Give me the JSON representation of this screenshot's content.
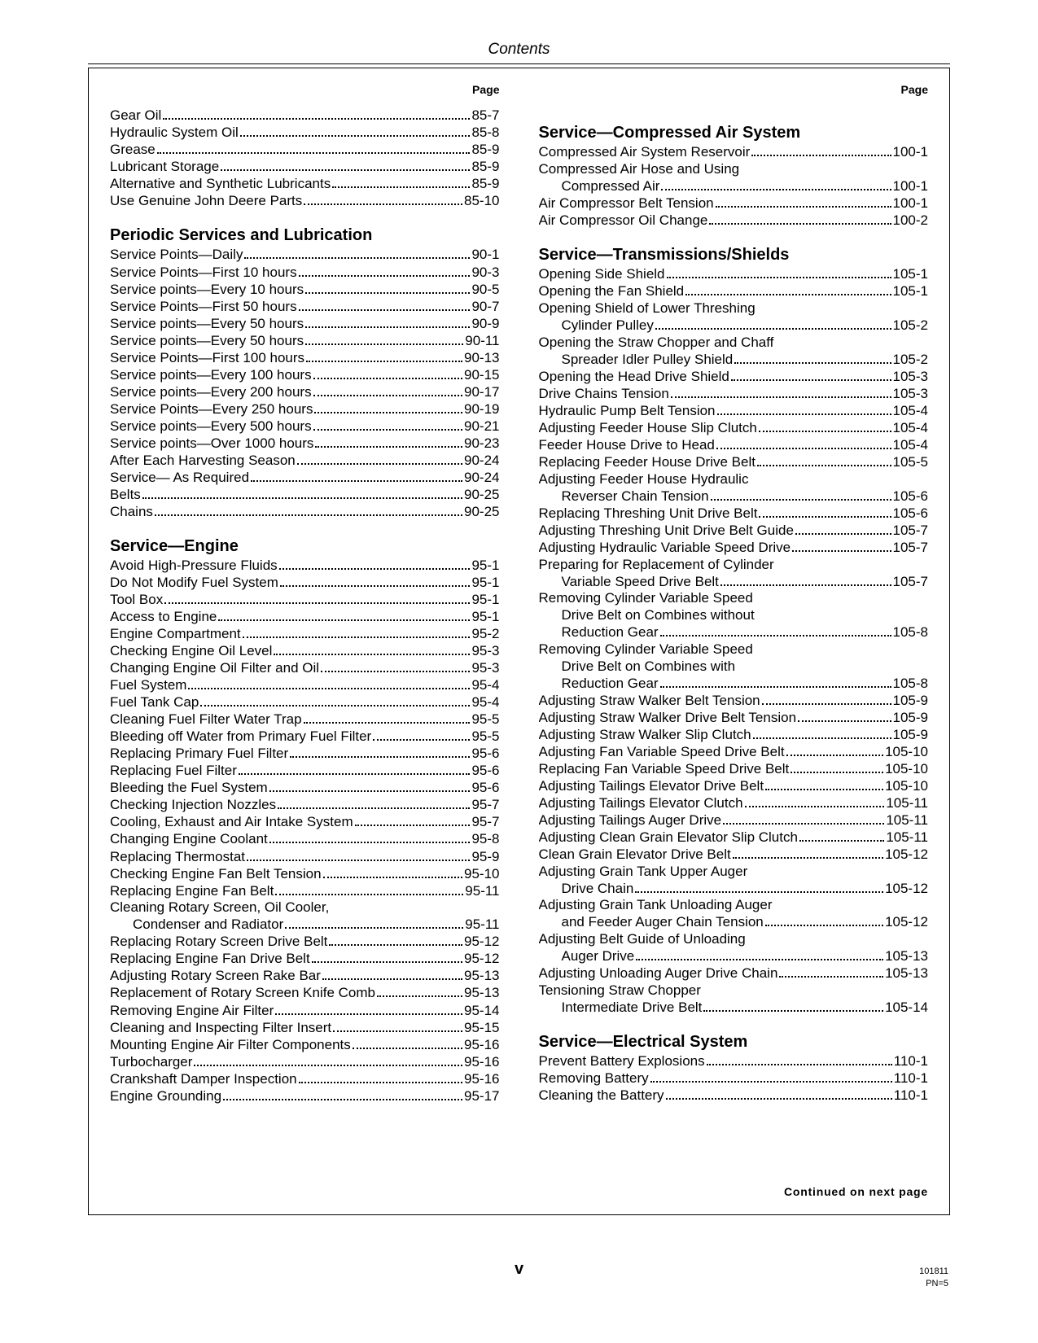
{
  "header": {
    "title": "Contents",
    "page_label": "Page"
  },
  "footer": {
    "roman": "v",
    "continued": "Continued on next page",
    "small1": "101811",
    "small2": "PN=5"
  },
  "left": {
    "sections": [
      {
        "title": null,
        "entries": [
          {
            "label": "Gear Oil",
            "page": "85-7"
          },
          {
            "label": "Hydraulic System Oil",
            "page": "85-8"
          },
          {
            "label": "Grease",
            "page": "85-9"
          },
          {
            "label": "Lubricant Storage",
            "page": "85-9"
          },
          {
            "label": "Alternative and Synthetic Lubricants",
            "page": "85-9"
          },
          {
            "label": "Use Genuine John Deere Parts",
            "page": "85-10"
          }
        ]
      },
      {
        "title": "Periodic Services and Lubrication",
        "entries": [
          {
            "label": "Service Points—Daily",
            "page": "90-1"
          },
          {
            "label": "Service Points—First 10 hours",
            "page": "90-3"
          },
          {
            "label": "Service points—Every 10 hours",
            "page": "90-5"
          },
          {
            "label": "Service Points—First 50 hours",
            "page": "90-7"
          },
          {
            "label": "Service points—Every 50 hours",
            "page": "90-9"
          },
          {
            "label": "Service points—Every 50 hours",
            "page": "90-11"
          },
          {
            "label": "Service Points—First 100 hours",
            "page": "90-13"
          },
          {
            "label": "Service points—Every 100 hours",
            "page": "90-15"
          },
          {
            "label": "Service points—Every 200 hours",
            "page": "90-17"
          },
          {
            "label": "Service Points—Every 250 hours",
            "page": "90-19"
          },
          {
            "label": "Service points—Every 500 hours",
            "page": "90-21"
          },
          {
            "label": "Service points—Over 1000 hours",
            "page": "90-23"
          },
          {
            "label": "After Each Harvesting Season",
            "page": "90-24"
          },
          {
            "label": "Service— As Required",
            "page": "90-24"
          },
          {
            "label": "Belts",
            "page": "90-25"
          },
          {
            "label": "Chains",
            "page": "90-25"
          }
        ]
      },
      {
        "title": "Service—Engine",
        "entries": [
          {
            "label": "Avoid High-Pressure Fluids",
            "page": "95-1"
          },
          {
            "label": "Do Not Modify Fuel System",
            "page": "95-1"
          },
          {
            "label": "Tool Box",
            "page": "95-1"
          },
          {
            "label": "Access to Engine",
            "page": "95-1"
          },
          {
            "label": "Engine Compartment",
            "page": "95-2"
          },
          {
            "label": "Checking Engine Oil Level",
            "page": "95-3"
          },
          {
            "label": "Changing Engine Oil Filter and Oil",
            "page": "95-3"
          },
          {
            "label": "Fuel System",
            "page": "95-4"
          },
          {
            "label": "Fuel Tank Cap",
            "page": "95-4"
          },
          {
            "label": "Cleaning Fuel Filter Water Trap",
            "page": "95-5"
          },
          {
            "label": "Bleeding off Water from Primary Fuel Filter",
            "page": "95-5"
          },
          {
            "label": "Replacing Primary Fuel Filter",
            "page": "95-6"
          },
          {
            "label": "Replacing Fuel Filter",
            "page": "95-6"
          },
          {
            "label": "Bleeding the Fuel System",
            "page": "95-6"
          },
          {
            "label": "Checking Injection Nozzles",
            "page": "95-7"
          },
          {
            "label": "Cooling, Exhaust and Air Intake System",
            "page": "95-7"
          },
          {
            "label": "Changing Engine Coolant",
            "page": "95-8"
          },
          {
            "label": "Replacing Thermostat",
            "page": "95-9"
          },
          {
            "label": "Checking Engine Fan Belt Tension",
            "page": "95-10"
          },
          {
            "label": "Replacing Engine Fan Belt",
            "page": "95-11"
          },
          {
            "label": "Cleaning Rotary Screen, Oil Cooler,",
            "cont": "Condenser and Radiator",
            "page": "95-11"
          },
          {
            "label": "Replacing Rotary Screen Drive Belt",
            "page": "95-12"
          },
          {
            "label": "Replacing Engine Fan Drive Belt",
            "page": "95-12"
          },
          {
            "label": "Adjusting Rotary Screen Rake Bar",
            "page": "95-13"
          },
          {
            "label": "Replacement of Rotary Screen Knife Comb",
            "page": "95-13"
          },
          {
            "label": "Removing Engine Air Filter",
            "page": "95-14"
          },
          {
            "label": "Cleaning and Inspecting Filter Insert",
            "page": "95-15"
          },
          {
            "label": "Mounting Engine Air Filter Components",
            "page": "95-16"
          },
          {
            "label": "Turbocharger",
            "page": "95-16"
          },
          {
            "label": "Crankshaft Damper Inspection",
            "page": "95-16"
          },
          {
            "label": "Engine Grounding",
            "page": "95-17"
          }
        ]
      }
    ]
  },
  "right": {
    "sections": [
      {
        "title": "Service—Compressed Air System",
        "entries": [
          {
            "label": "Compressed Air System Reservoir",
            "page": "100-1"
          },
          {
            "label": "Compressed Air Hose and Using",
            "cont": "Compressed Air",
            "page": "100-1"
          },
          {
            "label": "Air Compressor Belt Tension",
            "page": "100-1"
          },
          {
            "label": "Air Compressor Oil Change",
            "page": "100-2"
          }
        ]
      },
      {
        "title": "Service—Transmissions/Shields",
        "entries": [
          {
            "label": "Opening Side Shield",
            "page": "105-1"
          },
          {
            "label": "Opening the Fan Shield",
            "page": "105-1"
          },
          {
            "label": "Opening Shield of Lower Threshing",
            "cont": "Cylinder Pulley",
            "page": "105-2"
          },
          {
            "label": "Opening the Straw Chopper and Chaff",
            "cont": "Spreader Idler Pulley Shield",
            "page": "105-2"
          },
          {
            "label": "Opening the Head Drive Shield",
            "page": "105-3"
          },
          {
            "label": "Drive Chains Tension",
            "page": "105-3"
          },
          {
            "label": "Hydraulic Pump Belt Tension",
            "page": "105-4"
          },
          {
            "label": "Adjusting Feeder House Slip Clutch",
            "page": "105-4"
          },
          {
            "label": "Feeder House Drive to Head",
            "page": "105-4"
          },
          {
            "label": "Replacing Feeder House Drive Belt",
            "page": "105-5"
          },
          {
            "label": "Adjusting Feeder House Hydraulic",
            "cont": "Reverser Chain Tension",
            "page": "105-6"
          },
          {
            "label": "Replacing Threshing Unit Drive Belt",
            "page": "105-6"
          },
          {
            "label": "Adjusting Threshing Unit Drive Belt Guide",
            "page": "105-7"
          },
          {
            "label": "Adjusting Hydraulic Variable Speed Drive",
            "page": "105-7"
          },
          {
            "label": "Preparing for Replacement of Cylinder",
            "cont": "Variable Speed Drive Belt",
            "page": "105-7"
          },
          {
            "label": "Removing Cylinder Variable Speed",
            "cont": "Drive Belt on Combines without",
            "cont2": "Reduction Gear",
            "page": "105-8"
          },
          {
            "label": "Removing Cylinder Variable Speed",
            "cont": "Drive Belt on Combines with",
            "cont2": "Reduction Gear",
            "page": "105-8"
          },
          {
            "label": "Adjusting Straw Walker Belt Tension",
            "page": "105-9"
          },
          {
            "label": "Adjusting Straw Walker Drive Belt Tension",
            "page": "105-9"
          },
          {
            "label": "Adjusting Straw Walker Slip Clutch",
            "page": "105-9"
          },
          {
            "label": "Adjusting Fan Variable Speed Drive Belt",
            "page": "105-10"
          },
          {
            "label": "Replacing Fan Variable Speed Drive Belt",
            "page": "105-10"
          },
          {
            "label": "Adjusting Tailings Elevator Drive Belt",
            "page": "105-10"
          },
          {
            "label": "Adjusting Tailings Elevator Clutch",
            "page": "105-11"
          },
          {
            "label": "Adjusting Tailings Auger Drive",
            "page": "105-11"
          },
          {
            "label": "Adjusting Clean Grain Elevator Slip Clutch",
            "page": "105-11"
          },
          {
            "label": "Clean Grain Elevator Drive Belt",
            "page": "105-12"
          },
          {
            "label": "Adjusting Grain Tank Upper Auger",
            "cont": "Drive Chain",
            "page": "105-12"
          },
          {
            "label": "Adjusting Grain Tank Unloading Auger",
            "cont": "and Feeder Auger Chain Tension",
            "page": "105-12"
          },
          {
            "label": "Adjusting Belt Guide of Unloading",
            "cont": "Auger Drive",
            "page": "105-13"
          },
          {
            "label": "Adjusting Unloading Auger Drive Chain",
            "page": "105-13"
          },
          {
            "label": "Tensioning Straw Chopper",
            "cont": "Intermediate Drive Belt",
            "page": "105-14"
          }
        ]
      },
      {
        "title": "Service—Electrical System",
        "entries": [
          {
            "label": "Prevent Battery Explosions",
            "page": "110-1"
          },
          {
            "label": "Removing Battery",
            "page": "110-1"
          },
          {
            "label": "Cleaning the Battery",
            "page": "110-1"
          }
        ]
      }
    ]
  }
}
